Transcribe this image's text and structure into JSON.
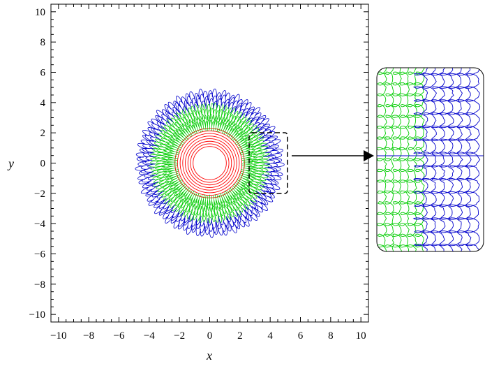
{
  "chart_data": {
    "type": "line",
    "xlabel": "x",
    "ylabel": "y",
    "xlim": [
      -10.5,
      10.5
    ],
    "ylim": [
      -10.5,
      10.5
    ],
    "xticks": [
      "−10",
      "−8",
      "−6",
      "−4",
      "−2",
      "0",
      "2",
      "4",
      "6",
      "8",
      "10"
    ],
    "yticks": [
      "−10",
      "−8",
      "−6",
      "−4",
      "−2",
      "0",
      "2",
      "4",
      "6",
      "8",
      "10"
    ],
    "grid": false,
    "legend": "none",
    "series": [
      {
        "color": "#ff0000",
        "radius_range": [
          1.1,
          2.3
        ],
        "shape": "concentric rings"
      },
      {
        "color": "#00cc00",
        "radius_range": [
          2.3,
          3.8
        ],
        "shape": "looping orbits"
      },
      {
        "color": "#0000cc",
        "radius_range": [
          3.8,
          4.7
        ],
        "shape": "looping orbits"
      }
    ],
    "zoom_region": {
      "x": [
        2.7,
        5.2
      ],
      "y": [
        -2.6,
        2.6
      ]
    },
    "inset": {
      "content": "magnified view of the boxed region"
    }
  }
}
